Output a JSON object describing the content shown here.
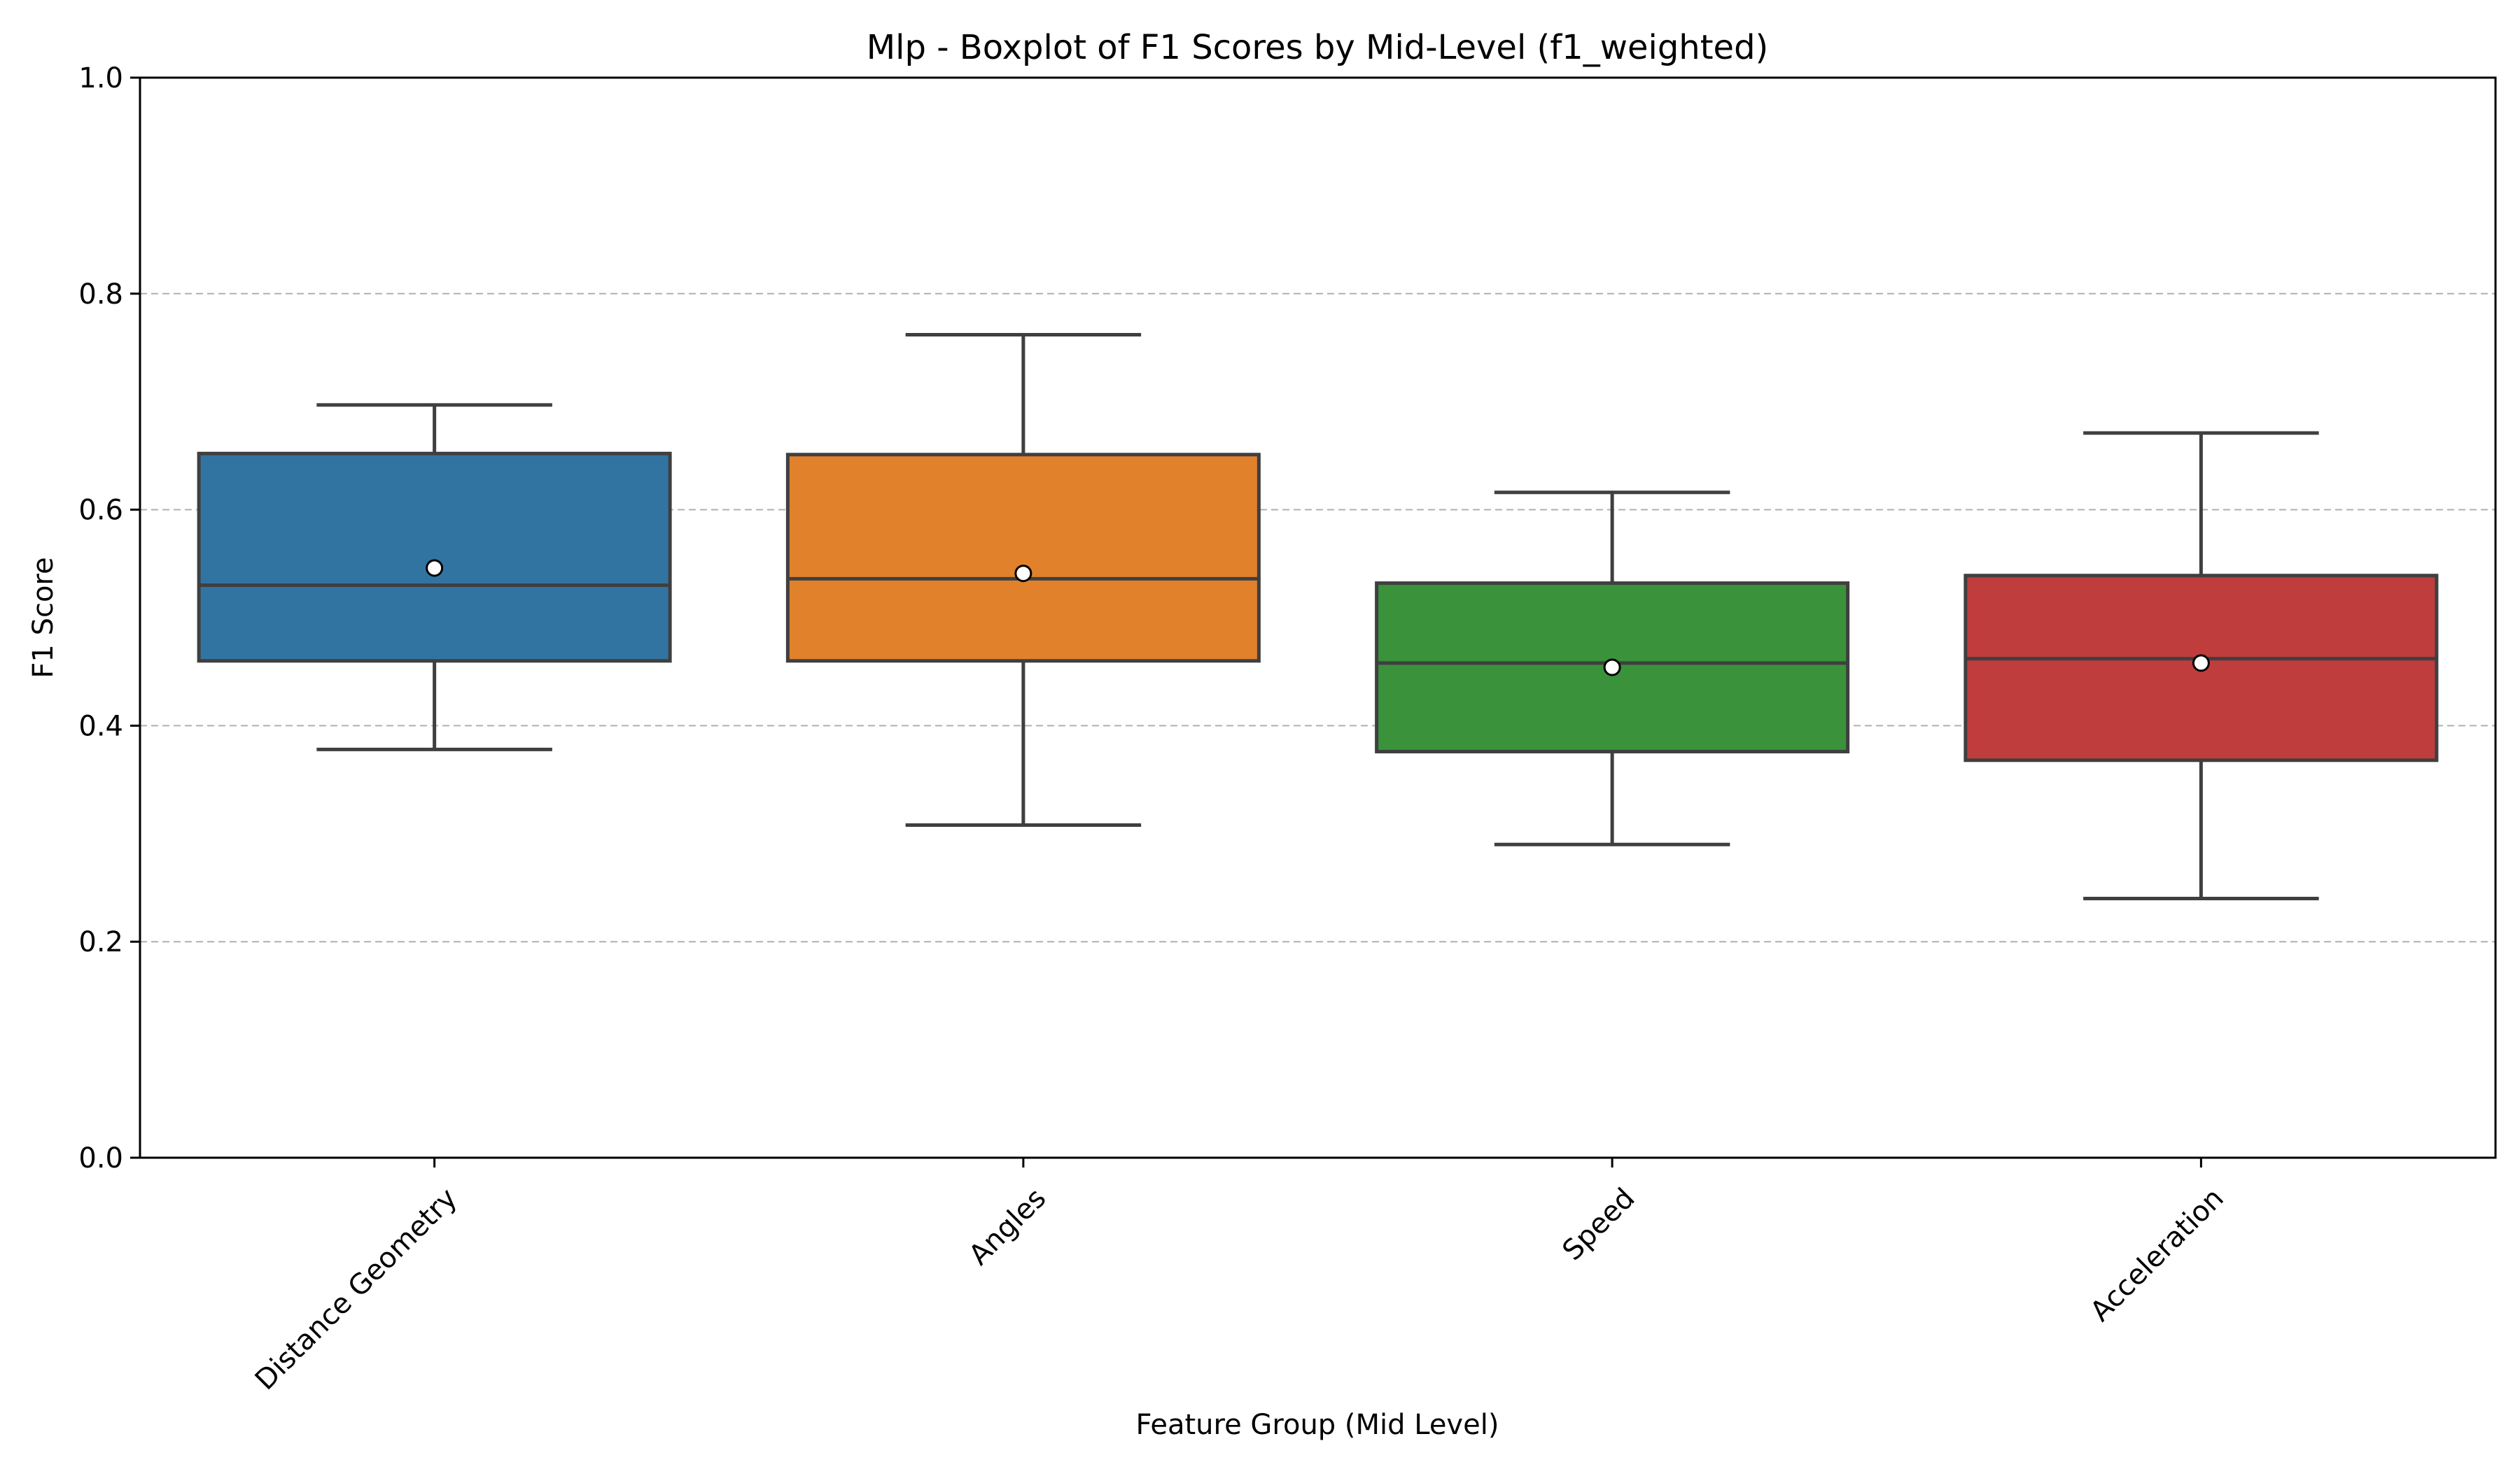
{
  "chart_data": {
    "type": "box",
    "title": "Mlp - Boxplot of F1 Scores by Mid-Level (f1_weighted)",
    "xlabel": "Feature Group (Mid Level)",
    "ylabel": "F1 Score",
    "ylim": [
      0.0,
      1.0
    ],
    "yticks": [
      "0.0",
      "0.2",
      "0.4",
      "0.6",
      "0.8",
      "1.0"
    ],
    "grid": "y-dashed",
    "legend": "none",
    "categories": [
      "Distance Geometry",
      "Angles",
      "Speed",
      "Acceleration"
    ],
    "boxes": [
      {
        "category": "Distance Geometry",
        "whisker_low": 0.378,
        "q1": 0.46,
        "median": 0.53,
        "q3": 0.652,
        "whisker_high": 0.697,
        "mean": 0.546,
        "color": "#3274a1"
      },
      {
        "category": "Angles",
        "whisker_low": 0.308,
        "q1": 0.46,
        "median": 0.536,
        "q3": 0.651,
        "whisker_high": 0.762,
        "mean": 0.541,
        "color": "#e1812c"
      },
      {
        "category": "Speed",
        "whisker_low": 0.29,
        "q1": 0.376,
        "median": 0.458,
        "q3": 0.532,
        "whisker_high": 0.616,
        "mean": 0.454,
        "color": "#3a923a"
      },
      {
        "category": "Acceleration",
        "whisker_low": 0.24,
        "q1": 0.368,
        "median": 0.462,
        "q3": 0.539,
        "whisker_high": 0.671,
        "mean": 0.458,
        "color": "#c03d3e"
      }
    ]
  }
}
